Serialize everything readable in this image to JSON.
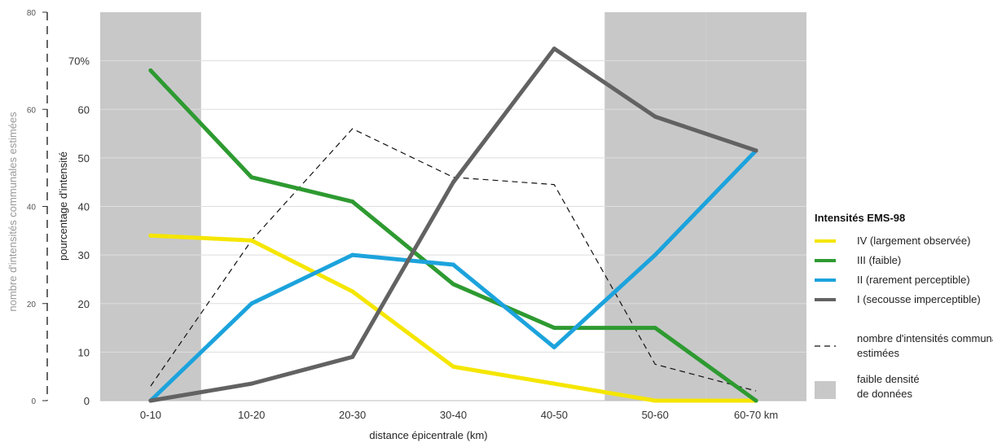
{
  "chart_data": {
    "type": "line",
    "categories": [
      "0-10",
      "10-20",
      "20-30",
      "30-40",
      "40-50",
      "50-60",
      "60-70 km"
    ],
    "xlabel": "distance épicentrale (km)",
    "ylabel": "pourcentage d'intensité",
    "ylim": [
      0,
      80
    ],
    "y_ticks": [
      "0",
      "10",
      "20",
      "30",
      "40",
      "50",
      "60",
      "70%"
    ],
    "y_tick_values": [
      0,
      10,
      20,
      30,
      40,
      50,
      60,
      70
    ],
    "secondary_axis": {
      "label": "nombre d'intensités communales estimées",
      "ylim": [
        0,
        80
      ],
      "ticks": [
        "0",
        "20",
        "40",
        "60",
        "80"
      ],
      "tick_values": [
        0,
        20,
        40,
        60,
        80
      ]
    },
    "series": [
      {
        "name": "IV (largement observée)",
        "color": "#f5e600",
        "values": [
          34,
          33,
          22.5,
          7,
          3.5,
          0,
          0
        ]
      },
      {
        "name": "III (faible)",
        "color": "#2e9a31",
        "values": [
          68,
          46,
          41,
          24,
          15,
          15,
          0
        ]
      },
      {
        "name": "II (rarement perceptible)",
        "color": "#1ca3dc",
        "values": [
          0,
          20,
          30,
          28,
          11,
          30,
          51.5
        ]
      },
      {
        "name": "I (secousse imperceptible)",
        "color": "#626262",
        "values": [
          0,
          3.5,
          9,
          45,
          72.5,
          58.5,
          51.5
        ]
      }
    ],
    "dashed_series": {
      "name": "nombre d'intensités communales estimées",
      "color": "#111111",
      "values": [
        3,
        33,
        56,
        46,
        44.5,
        7.5,
        2
      ]
    },
    "shaded_regions": {
      "name": "faible densité de données",
      "color": "#c8c8c9",
      "categories": [
        "0-10",
        "50-60",
        "60-70 km"
      ]
    },
    "legend": {
      "title": "Intensités EMS-98",
      "position": "right"
    },
    "grid": true
  }
}
